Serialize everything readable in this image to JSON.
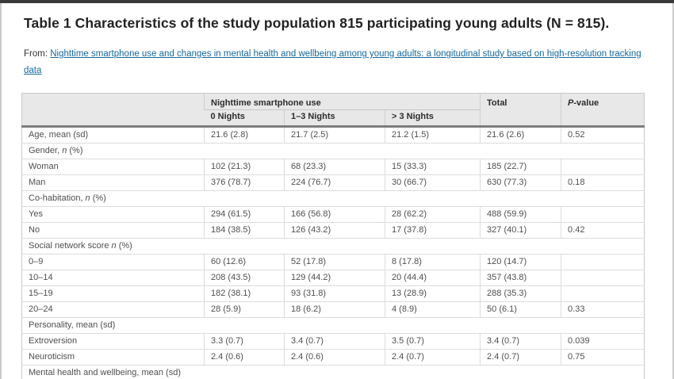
{
  "page": {
    "title": "Table 1 Characteristics of the study population 815 participating young adults (N = 815).",
    "from_label": "From: ",
    "source_link": "Nighttime smartphone use and changes in mental health and wellbeing among young adults: a longitudinal study based on high-resolution tracking data"
  },
  "colors": {
    "link": "#17699c",
    "header_bg": "#e8e8e8",
    "thick_rule": "#7d7d7d",
    "row_border": "#dcdcdc",
    "top_bar": "#3a3a3a"
  },
  "table": {
    "group_header": "Nighttime smartphone use",
    "sub_headers": [
      "0 Nights",
      "1–3 Nights",
      "> 3 Nights"
    ],
    "total_header": "Total",
    "pvalue_header_italic": "P",
    "pvalue_header_rest": "-value",
    "rows": [
      {
        "type": "data",
        "label": "Age, mean (sd)",
        "cells": [
          "21.6 (2.8)",
          "21.7 (2.5)",
          "21.2 (1.5)",
          "21.6 (2.6)",
          "0.52"
        ]
      },
      {
        "type": "section",
        "prefix": "Gender, ",
        "italic": "n",
        "suffix": " (%)"
      },
      {
        "type": "data",
        "label": "Woman",
        "cells": [
          "102 (21.3)",
          "68 (23.3)",
          "15 (33.3)",
          "185 (22.7)",
          ""
        ]
      },
      {
        "type": "data",
        "label": "Man",
        "cells": [
          "376 (78.7)",
          "224 (76.7)",
          "30 (66.7)",
          "630 (77.3)",
          "0.18"
        ]
      },
      {
        "type": "section",
        "prefix": "Co-habitation, ",
        "italic": "n",
        "suffix": " (%)"
      },
      {
        "type": "data",
        "label": "Yes",
        "cells": [
          "294 (61.5)",
          "166 (56.8)",
          "28 (62.2)",
          "488 (59.9)",
          ""
        ]
      },
      {
        "type": "data",
        "label": "No",
        "cells": [
          "184 (38.5)",
          "126 (43.2)",
          "17 (37.8)",
          "327 (40.1)",
          "0.42"
        ]
      },
      {
        "type": "section",
        "prefix": "Social network score ",
        "italic": "n",
        "suffix": " (%)"
      },
      {
        "type": "data",
        "label": "0–9",
        "cells": [
          "60 (12.6)",
          "52 (17.8)",
          "8 (17.8)",
          "120 (14.7)",
          ""
        ]
      },
      {
        "type": "data",
        "label": "10–14",
        "cells": [
          "208 (43.5)",
          "129 (44.2)",
          "20 (44.4)",
          "357 (43.8)",
          ""
        ]
      },
      {
        "type": "data",
        "label": "15–19",
        "cells": [
          "182 (38.1)",
          "93 (31.8)",
          "13 (28.9)",
          "288 (35.3)",
          ""
        ]
      },
      {
        "type": "data",
        "label": "20–24",
        "cells": [
          "28 (5.9)",
          "18 (6.2)",
          "4 (8.9)",
          "50 (6.1)",
          "0.33"
        ]
      },
      {
        "type": "section",
        "prefix": "Personality, mean (sd)",
        "italic": "",
        "suffix": ""
      },
      {
        "type": "data",
        "label": "Extroversion",
        "cells": [
          "3.3 (0.7)",
          "3.4 (0.7)",
          "3.5 (0.7)",
          "3.4 (0.7)",
          "0.039"
        ]
      },
      {
        "type": "data",
        "label": "Neuroticism",
        "cells": [
          "2.4 (0.6)",
          "2.4 (0.6)",
          "2.4 (0.7)",
          "2.4 (0.7)",
          "0.75"
        ]
      },
      {
        "type": "section",
        "prefix": "Mental health and wellbeing, mean (sd)",
        "italic": "",
        "suffix": ""
      }
    ]
  }
}
